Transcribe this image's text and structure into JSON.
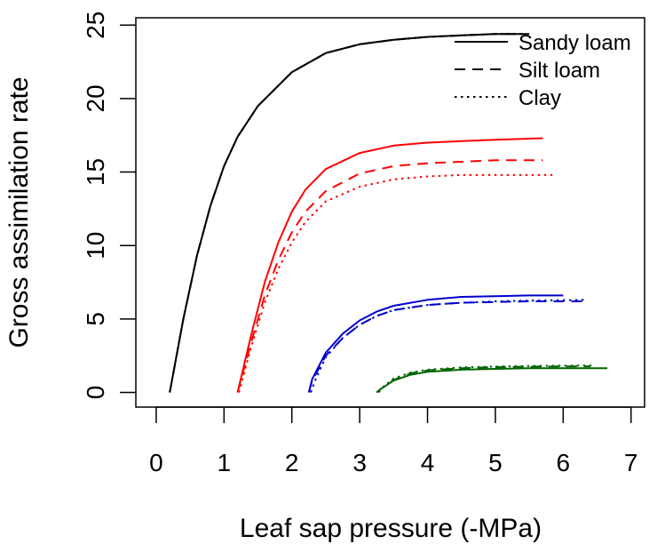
{
  "chart_data": {
    "type": "line",
    "xlabel": "Leaf sap pressure (-MPa)",
    "ylabel": "Gross assimilation rate",
    "xlim": [
      -0.3,
      7.2
    ],
    "ylim": [
      -1.0,
      25.5
    ],
    "xticks": [
      0,
      1,
      2,
      3,
      4,
      5,
      6,
      7
    ],
    "yticks": [
      0,
      5,
      10,
      15,
      20,
      25
    ],
    "grid": false,
    "legend": {
      "placement": "top-right",
      "entries": [
        {
          "label": "Sandy loam",
          "dash": "solid"
        },
        {
          "label": "Silt loam",
          "dash": "dashed"
        },
        {
          "label": "Clay",
          "dash": "dotted"
        }
      ]
    },
    "colors": {
      "group1": "#000000",
      "group2": "#ff0000",
      "group3": "#0000cc",
      "group4": "#006400"
    },
    "series": [
      {
        "group": "group1",
        "dash": "solid",
        "x": [
          0.2,
          0.4,
          0.6,
          0.8,
          1.0,
          1.2,
          1.5,
          2.0,
          2.5,
          3.0,
          3.5,
          4.0,
          4.5,
          5.0,
          5.5
        ],
        "y": [
          0.0,
          5.0,
          9.3,
          12.7,
          15.4,
          17.4,
          19.5,
          21.8,
          23.1,
          23.7,
          24.0,
          24.2,
          24.3,
          24.4,
          24.4
        ]
      },
      {
        "group": "group1",
        "dash": "dashed",
        "x": [
          0.2,
          0.4,
          0.6,
          0.8,
          1.0,
          1.2,
          1.5,
          2.0,
          2.5,
          3.0,
          3.5,
          4.0,
          4.5,
          5.0,
          5.4
        ],
        "y": [
          0.0,
          5.0,
          9.3,
          12.7,
          15.4,
          17.4,
          19.5,
          21.8,
          23.1,
          23.7,
          24.0,
          24.2,
          24.3,
          24.4,
          24.4
        ]
      },
      {
        "group": "group1",
        "dash": "dotted",
        "x": [
          0.2,
          0.4,
          0.6,
          0.8,
          1.0,
          1.2,
          1.5,
          2.0,
          2.5,
          3.0,
          3.5,
          4.0,
          4.5,
          5.0,
          5.4
        ],
        "y": [
          0.0,
          5.0,
          9.3,
          12.7,
          15.4,
          17.4,
          19.5,
          21.8,
          23.1,
          23.7,
          24.0,
          24.2,
          24.3,
          24.4,
          24.4
        ]
      },
      {
        "group": "group2",
        "dash": "solid",
        "x": [
          1.2,
          1.4,
          1.6,
          1.8,
          2.0,
          2.2,
          2.5,
          3.0,
          3.5,
          4.0,
          4.5,
          5.0,
          5.7
        ],
        "y": [
          0.0,
          3.9,
          7.5,
          10.2,
          12.3,
          13.8,
          15.2,
          16.3,
          16.8,
          17.0,
          17.1,
          17.2,
          17.3
        ]
      },
      {
        "group": "group2",
        "dash": "dashed",
        "x": [
          1.2,
          1.4,
          1.6,
          1.8,
          2.0,
          2.2,
          2.5,
          3.0,
          3.5,
          4.0,
          4.5,
          5.0,
          5.7
        ],
        "y": [
          0.0,
          3.4,
          6.6,
          9.0,
          10.9,
          12.3,
          13.7,
          14.9,
          15.4,
          15.6,
          15.7,
          15.8,
          15.8
        ]
      },
      {
        "group": "group2",
        "dash": "dotted",
        "x": [
          1.22,
          1.4,
          1.6,
          1.8,
          2.0,
          2.2,
          2.5,
          3.0,
          3.5,
          4.0,
          4.5,
          5.0,
          5.9
        ],
        "y": [
          0.0,
          3.1,
          6.1,
          8.4,
          10.2,
          11.6,
          13.0,
          14.0,
          14.5,
          14.7,
          14.8,
          14.8,
          14.8
        ]
      },
      {
        "group": "group3",
        "dash": "solid",
        "x": [
          2.25,
          2.3,
          2.5,
          2.75,
          3.0,
          3.25,
          3.5,
          4.0,
          4.5,
          5.0,
          5.5,
          6.0
        ],
        "y": [
          0.0,
          0.9,
          2.7,
          4.0,
          4.9,
          5.5,
          5.9,
          6.3,
          6.5,
          6.55,
          6.6,
          6.6
        ]
      },
      {
        "group": "group3",
        "dash": "dashed",
        "x": [
          2.25,
          2.3,
          2.5,
          2.75,
          3.0,
          3.25,
          3.5,
          4.0,
          4.5,
          5.0,
          5.5,
          6.3
        ],
        "y": [
          0.0,
          0.8,
          2.5,
          3.7,
          4.6,
          5.2,
          5.6,
          5.95,
          6.1,
          6.15,
          6.2,
          6.2
        ]
      },
      {
        "group": "group3",
        "dash": "dotted",
        "x": [
          2.28,
          2.35,
          2.5,
          2.75,
          3.0,
          3.25,
          3.5,
          4.0,
          4.5,
          5.0,
          5.5,
          6.35
        ],
        "y": [
          0.0,
          0.9,
          2.4,
          3.7,
          4.6,
          5.2,
          5.6,
          5.95,
          6.1,
          6.2,
          6.25,
          6.3
        ]
      },
      {
        "group": "group4",
        "dash": "solid",
        "x": [
          3.25,
          3.3,
          3.5,
          3.75,
          4.0,
          4.5,
          5.0,
          5.5,
          6.0,
          6.65
        ],
        "y": [
          0.0,
          0.2,
          0.8,
          1.2,
          1.4,
          1.55,
          1.6,
          1.65,
          1.65,
          1.65
        ]
      },
      {
        "group": "group4",
        "dash": "dashed",
        "x": [
          3.25,
          3.3,
          3.5,
          3.75,
          4.0,
          4.5,
          5.0,
          5.5,
          6.0,
          6.4
        ],
        "y": [
          0.0,
          0.2,
          0.85,
          1.3,
          1.5,
          1.65,
          1.72,
          1.75,
          1.77,
          1.78
        ]
      },
      {
        "group": "group4",
        "dash": "dotted",
        "x": [
          3.28,
          3.35,
          3.5,
          3.75,
          4.0,
          4.5,
          5.0,
          5.5,
          6.0,
          6.45
        ],
        "y": [
          0.0,
          0.4,
          0.95,
          1.35,
          1.55,
          1.7,
          1.76,
          1.8,
          1.82,
          1.83
        ]
      }
    ]
  }
}
